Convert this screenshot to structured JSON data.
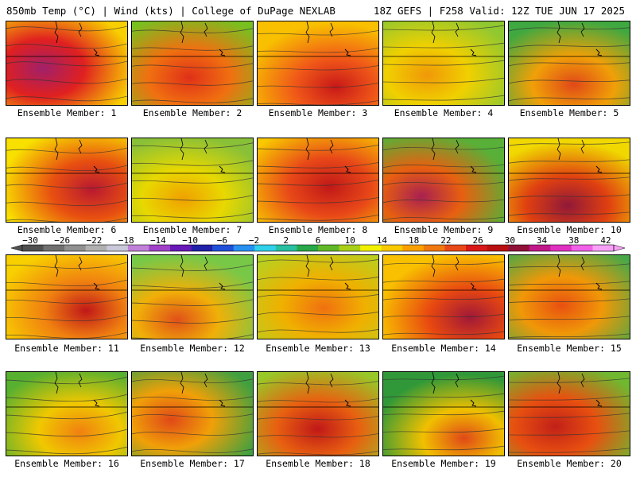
{
  "header": {
    "title_left": "850mb Temp (°C) | Wind (kts) | College of DuPage NEXLAB",
    "title_right": "18Z GEFS | F258 Valid: 12Z TUE JUN 17 2025"
  },
  "panels": [
    {
      "label": "Ensemble Member: 1",
      "fill": "#e02020",
      "hot": "#a0206a",
      "cool": "#f8d000"
    },
    {
      "label": "Ensemble Member: 2",
      "fill": "#f07010",
      "hot": "#e03018",
      "cool": "#78c020"
    },
    {
      "label": "Ensemble Member: 3",
      "fill": "#f05818",
      "hot": "#c81818",
      "cool": "#f8c000"
    },
    {
      "label": "Ensemble Member: 4",
      "fill": "#f0d000",
      "hot": "#f09808",
      "cool": "#90c830"
    },
    {
      "label": "Ensemble Member: 5",
      "fill": "#f0a008",
      "hot": "#e04818",
      "cool": "#40a840"
    },
    {
      "label": "Ensemble Member: 6",
      "fill": "#e85010",
      "hot": "#b81830",
      "cool": "#f8e000"
    },
    {
      "label": "Ensemble Member: 7",
      "fill": "#e8d800",
      "hot": "#f0a000",
      "cool": "#88c038"
    },
    {
      "label": "Ensemble Member: 8",
      "fill": "#e84818",
      "hot": "#c01818",
      "cool": "#f8c800"
    },
    {
      "label": "Ensemble Member: 9",
      "fill": "#e86010",
      "hot": "#a82050",
      "cool": "#58b038"
    },
    {
      "label": "Ensemble Member: 10",
      "fill": "#e04010",
      "hot": "#901838",
      "cool": "#f0d800"
    },
    {
      "label": "Ensemble Member: 11",
      "fill": "#f08010",
      "hot": "#c01818",
      "cool": "#f8d000"
    },
    {
      "label": "Ensemble Member: 12",
      "fill": "#f0b008",
      "hot": "#e05018",
      "cool": "#78c848"
    },
    {
      "label": "Ensemble Member: 13",
      "fill": "#f0b000",
      "hot": "#f07010",
      "cool": "#b8d020"
    },
    {
      "label": "Ensemble Member: 14",
      "fill": "#e84810",
      "hot": "#a01838",
      "cool": "#f8c000"
    },
    {
      "label": "Ensemble Member: 15",
      "fill": "#f09808",
      "hot": "#e85010",
      "cool": "#48a848"
    },
    {
      "label": "Ensemble Member: 16",
      "fill": "#f0c800",
      "hot": "#f08010",
      "cool": "#58b030"
    },
    {
      "label": "Ensemble Member: 17",
      "fill": "#f0a008",
      "hot": "#e04818",
      "cool": "#40a040"
    },
    {
      "label": "Ensemble Member: 18",
      "fill": "#e86010",
      "hot": "#c01818",
      "cool": "#98c828"
    },
    {
      "label": "Ensemble Member: 19",
      "fill": "#f0c000",
      "hot": "#e04818",
      "cool": "#309838"
    },
    {
      "label": "Ensemble Member: 20",
      "fill": "#e85010",
      "hot": "#c02018",
      "cool": "#70b830"
    }
  ],
  "colorbar": {
    "ticks": [
      "−30",
      "−26",
      "−22",
      "−18",
      "−14",
      "−10",
      "−6",
      "−2",
      "2",
      "6",
      "10",
      "14",
      "18",
      "22",
      "26",
      "30",
      "34",
      "38",
      "42"
    ],
    "colors": [
      "#505050",
      "#707070",
      "#909090",
      "#b0b0b0",
      "#c8c8d8",
      "#c080d8",
      "#a040c8",
      "#6818b8",
      "#2020a8",
      "#2050d8",
      "#2890f0",
      "#30d0e8",
      "#28c0a0",
      "#28a848",
      "#60b828",
      "#a8d018",
      "#f0f000",
      "#f8c800",
      "#f8a000",
      "#f07810",
      "#e84818",
      "#d81818",
      "#b81010",
      "#901038",
      "#c01888",
      "#e030c0",
      "#f060e8",
      "#f8a0f8"
    ]
  }
}
